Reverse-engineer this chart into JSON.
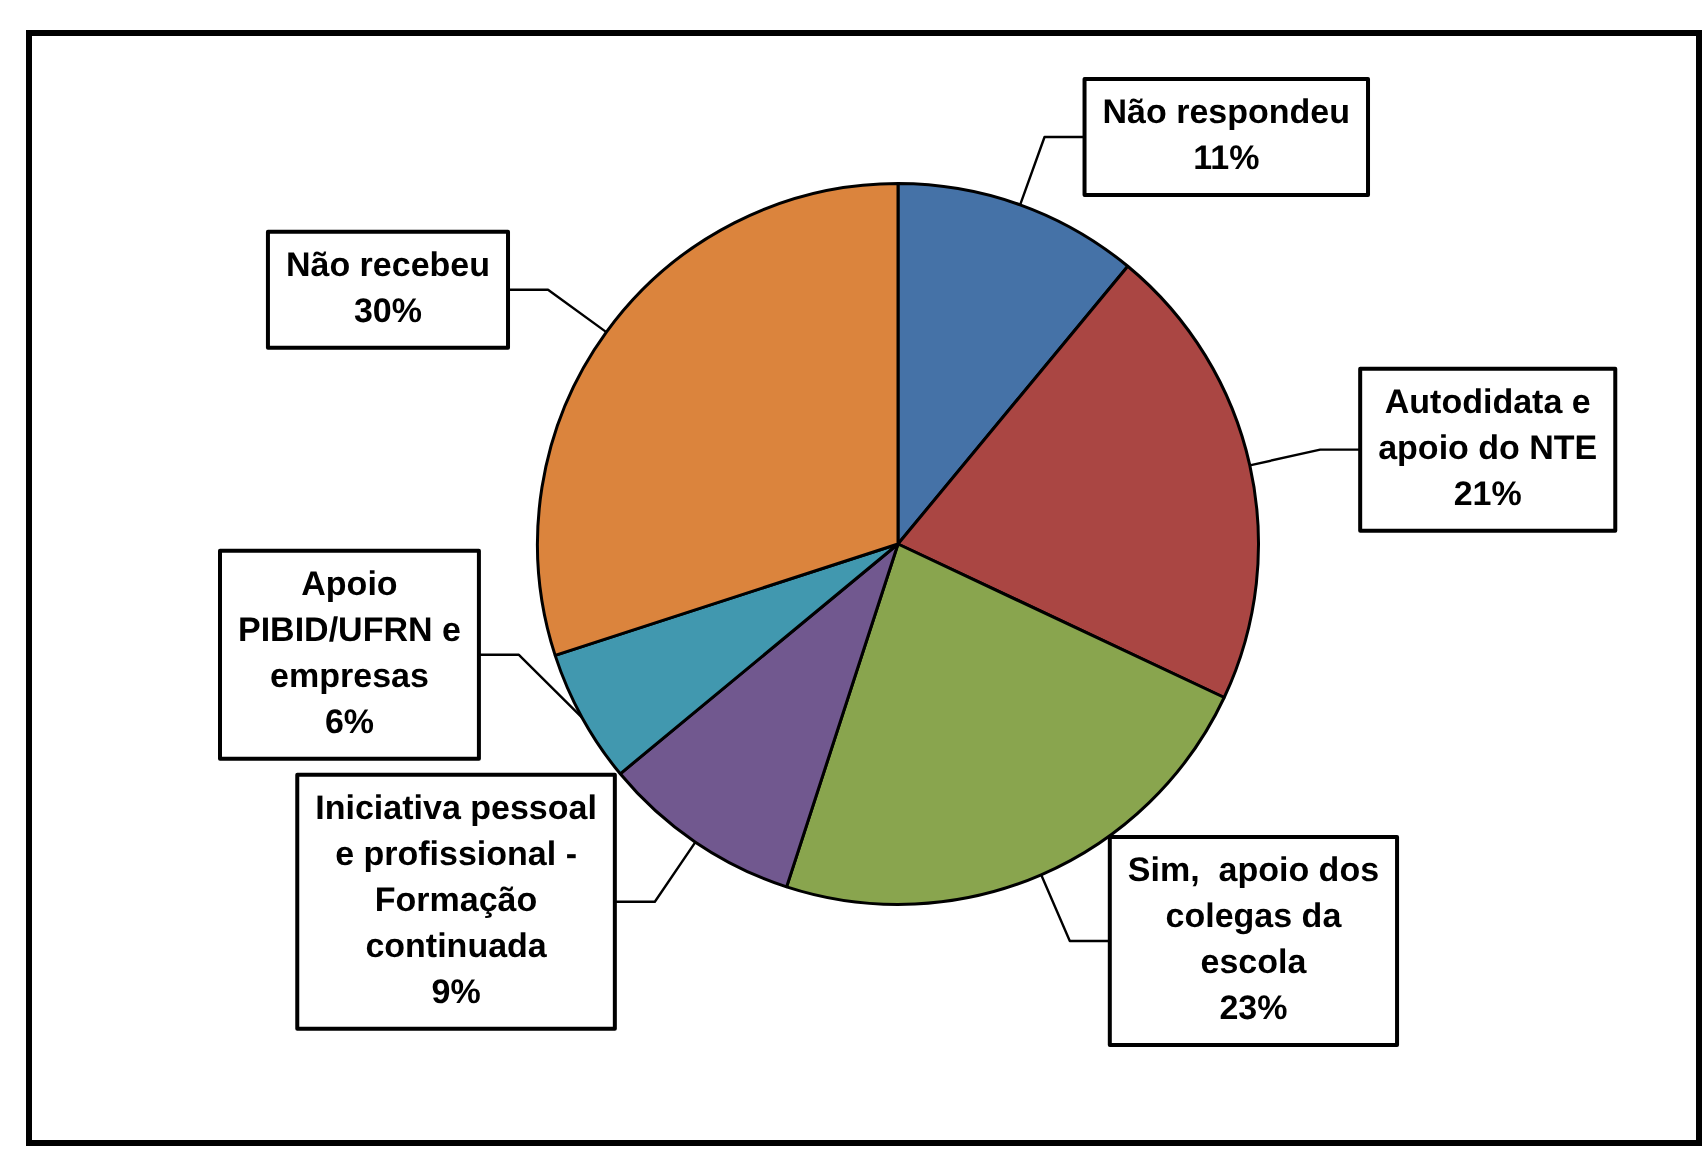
{
  "chart_data": {
    "type": "pie",
    "categories": [
      "Não respondeu",
      "Autodidata e apoio do NTE",
      "Sim,  apoio dos colegas da escola",
      "Iniciativa pessoal e profissional - Formação continuada",
      "Apoio PIBID/UFRN e empresas",
      "Não recebeu"
    ],
    "values": [
      11,
      21,
      23,
      9,
      6,
      30
    ],
    "colors": [
      "#4572a7",
      "#aa4643",
      "#89a54e",
      "#71588f",
      "#4198af",
      "#db843d"
    ],
    "value_labels": [
      "11%",
      "21%",
      "23%",
      "9%",
      "6%",
      "30%"
    ]
  }
}
